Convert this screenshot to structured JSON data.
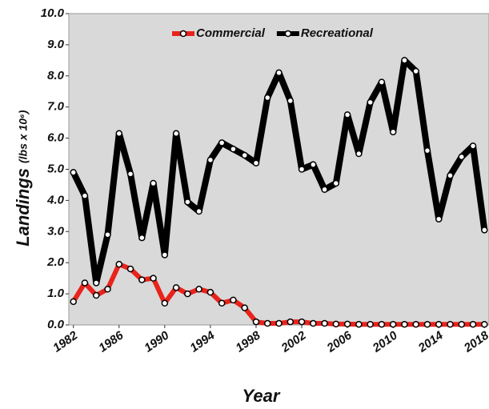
{
  "chart_data": {
    "type": "line",
    "xlabel": "Year",
    "ylabel": "Landings",
    "ylabel_unit": "(lbs x 10⁶)",
    "x": [
      1982,
      1983,
      1984,
      1985,
      1986,
      1987,
      1988,
      1989,
      1990,
      1991,
      1992,
      1993,
      1994,
      1995,
      1996,
      1997,
      1998,
      1999,
      2000,
      2001,
      2002,
      2003,
      2004,
      2005,
      2006,
      2007,
      2008,
      2009,
      2010,
      2011,
      2012,
      2013,
      2014,
      2015,
      2016,
      2017,
      2018
    ],
    "series": [
      {
        "name": "Commercial",
        "color": "#e8231c",
        "values": [
          0.75,
          1.35,
          0.95,
          1.15,
          1.95,
          1.8,
          1.45,
          1.5,
          0.7,
          1.2,
          1.0,
          1.15,
          1.05,
          0.7,
          0.8,
          0.55,
          0.1,
          0.05,
          0.05,
          0.1,
          0.1,
          0.05,
          0.05,
          0.03,
          0.03,
          0.02,
          0.02,
          0.02,
          0.02,
          0.02,
          0.02,
          0.02,
          0.02,
          0.02,
          0.02,
          0.02,
          0.02
        ]
      },
      {
        "name": "Recreational",
        "color": "#000000",
        "values": [
          4.9,
          4.15,
          1.35,
          2.9,
          6.15,
          4.85,
          2.8,
          4.55,
          2.25,
          6.15,
          3.95,
          3.65,
          5.3,
          5.85,
          5.65,
          5.45,
          5.2,
          7.3,
          8.1,
          7.2,
          5.0,
          5.15,
          4.35,
          4.55,
          6.75,
          5.5,
          7.15,
          7.8,
          6.2,
          8.5,
          8.15,
          5.6,
          3.4,
          4.8,
          5.4,
          5.75,
          3.05
        ]
      }
    ],
    "xlim": [
      1981.6,
      2018.4
    ],
    "xticks": [
      1982,
      1986,
      1990,
      1994,
      1998,
      2002,
      2006,
      2010,
      2014,
      2018
    ],
    "ylim": [
      0,
      10
    ],
    "yticks": [
      {
        "value": 0,
        "label": "0.0"
      },
      {
        "value": 1,
        "label": "1.0"
      },
      {
        "value": 2,
        "label": "2.0"
      },
      {
        "value": 3,
        "label": "3.0"
      },
      {
        "value": 4,
        "label": "4.0"
      },
      {
        "value": 5,
        "label": "5.0"
      },
      {
        "value": 6,
        "label": "6.0"
      },
      {
        "value": 7,
        "label": "7.0"
      },
      {
        "value": 8,
        "label": "8.0"
      },
      {
        "value": 9,
        "label": "9.0"
      },
      {
        "value": 10,
        "label": "10.0"
      }
    ],
    "legend": "top"
  }
}
